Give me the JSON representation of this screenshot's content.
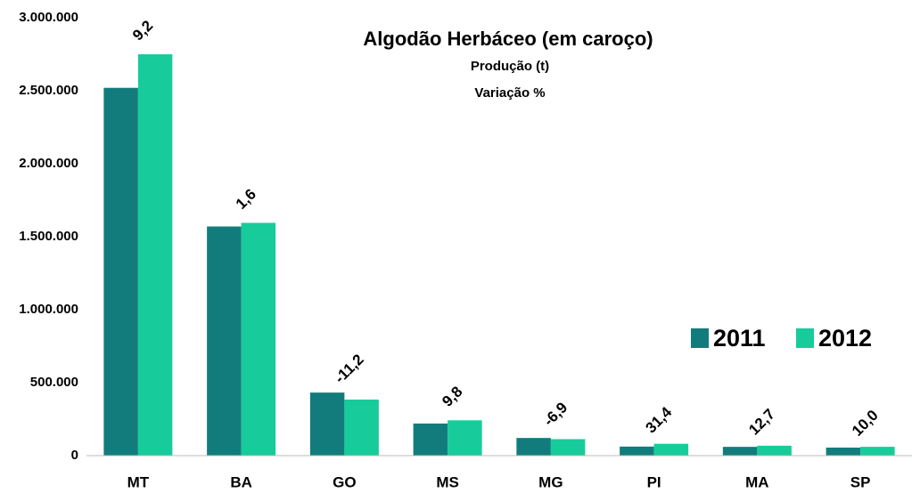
{
  "chart_data": {
    "type": "bar",
    "title": "Algodão Herbáceo (em caroço)",
    "subtitle": "Produção (t)",
    "annotation": "Variação %",
    "categories": [
      "MT",
      "BA",
      "GO",
      "MS",
      "MG",
      "PI",
      "MA",
      "SP"
    ],
    "series": [
      {
        "name": "2011",
        "color": "#127c7c",
        "values": [
          2520000,
          1570000,
          432000,
          220000,
          121000,
          62000,
          60000,
          55000
        ]
      },
      {
        "name": "2012",
        "color": "#17cc9a",
        "values": [
          2750000,
          1595000,
          384000,
          242000,
          113000,
          81000,
          68000,
          60500
        ]
      }
    ],
    "variation": {
      "values": [
        9.2,
        1.6,
        -11.2,
        9.8,
        -6.9,
        31.4,
        12.7,
        10.0
      ],
      "value_labels": [
        "9,2",
        "1,6",
        "-11,2",
        "9,8",
        "-6,9",
        "31,4",
        "12,7",
        "10,0"
      ]
    },
    "ylim": [
      0,
      3000000
    ],
    "yticks": [
      0,
      {
        "value": 500000,
        "label": "500.000"
      },
      {
        "value": 1000000,
        "label": "1.000.000"
      },
      {
        "value": 1500000,
        "label": "1.500.000"
      },
      {
        "value": 2000000,
        "label": "2.000.000"
      },
      {
        "value": 2500000,
        "label": "2.500.000"
      },
      {
        "value": 3000000,
        "label": "3.000.000"
      }
    ],
    "legend": "right"
  }
}
